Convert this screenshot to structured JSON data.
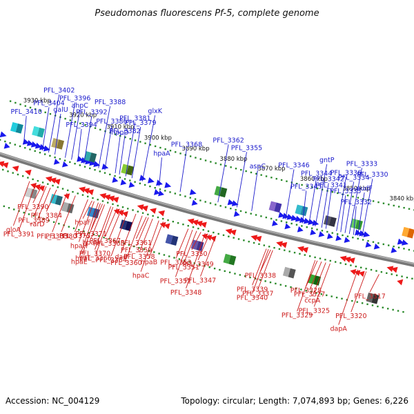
{
  "title": "Pseudomonas fluorescens Pf-5, complete genome",
  "footer": {
    "accession": "Accession: NC_004129",
    "summary": "Topology: circular; Length: 7,074,893 bp; Genes: 6,226"
  },
  "colors": {
    "backbone": "#888888",
    "forward": "#1a1aee",
    "reverse": "#ee1a1a",
    "label_top": "#1a1acc",
    "label_bottom": "#cc1a1a",
    "dots": "#2a8a2a"
  },
  "kbp_ticks": [
    {
      "label": "3930 kbp",
      "u": 0.06
    },
    {
      "label": "3920 kbp",
      "u": 0.17
    },
    {
      "label": "3910 kbp",
      "u": 0.26
    },
    {
      "label": "3900 kbp",
      "u": 0.35
    },
    {
      "label": "3890 kbp",
      "u": 0.44
    },
    {
      "label": "3880 kbp",
      "u": 0.53
    },
    {
      "label": "3870 kbp",
      "u": 0.62
    },
    {
      "label": "3860 kbp",
      "u": 0.72
    },
    {
      "label": "3850 kbp",
      "u": 0.82
    },
    {
      "label": "3840 kbp",
      "u": 0.93
    }
  ],
  "top_genes": [
    {
      "label": "PFL_3410",
      "u": 0.055
    },
    {
      "label": "PFL_3404",
      "u": 0.1
    },
    {
      "label": "PFL_3402",
      "u": 0.115
    },
    {
      "label": "galU",
      "u": 0.13
    },
    {
      "label": "PFL_3396",
      "u": 0.155
    },
    {
      "label": "ahpC",
      "u": 0.17
    },
    {
      "label": "PFL_3394",
      "u": 0.185
    },
    {
      "label": "PFL_3392",
      "u": 0.2
    },
    {
      "label": "PFL_3388",
      "u": 0.235
    },
    {
      "label": "PFL_3386",
      "u": 0.25
    },
    {
      "label": "PFL_3382",
      "u": 0.285
    },
    {
      "label": "PFL_3381",
      "u": 0.3
    },
    {
      "label": "hppD",
      "u": 0.275
    },
    {
      "label": "PFL_3379",
      "u": 0.315
    },
    {
      "label": "glxK",
      "u": 0.34
    },
    {
      "label": "hpaA",
      "u": 0.38
    },
    {
      "label": "PFL_3368",
      "u": 0.43
    },
    {
      "label": "PFL_3362",
      "u": 0.52
    },
    {
      "label": "aspC",
      "u": 0.6
    },
    {
      "label": "PFL_3355",
      "u": 0.565
    },
    {
      "label": "PFL_3346",
      "u": 0.68
    },
    {
      "label": "PFL_3345",
      "u": 0.72
    },
    {
      "label": "PFL_3344",
      "u": 0.735
    },
    {
      "label": "gntP",
      "u": 0.75
    },
    {
      "label": "PFL_3342",
      "u": 0.765
    },
    {
      "label": "PFL_3341",
      "u": 0.775
    },
    {
      "label": "PFL_3336",
      "u": 0.8
    },
    {
      "label": "PFL_3335",
      "u": 0.81
    },
    {
      "label": "PFL_3334",
      "u": 0.82
    },
    {
      "label": "PFL_3333",
      "u": 0.83
    },
    {
      "label": "PFL_3332",
      "u": 0.84
    },
    {
      "label": "nudF",
      "u": 0.85
    },
    {
      "label": "PFL_3330",
      "u": 0.86
    }
  ],
  "bottom_genes": [
    {
      "label": "PFL_3390",
      "u": 0.12
    },
    {
      "label": "rarD",
      "u": 0.14
    },
    {
      "label": "PFL_3391",
      "u": 0.105
    },
    {
      "label": "PFL_3389",
      "u": 0.13
    },
    {
      "label": "gloA",
      "u": 0.09
    },
    {
      "label": "PFL_3383",
      "u": 0.18
    },
    {
      "label": "PFL_3384",
      "u": 0.155
    },
    {
      "label": "PFL_3380",
      "u": 0.2
    },
    {
      "label": "hpaI",
      "u": 0.26
    },
    {
      "label": "hpaD",
      "u": 0.27
    },
    {
      "label": "PFL_3367",
      "u": 0.3
    },
    {
      "label": "PFL_3370",
      "u": 0.285
    },
    {
      "label": "PFL_3371",
      "u": 0.265
    },
    {
      "label": "hpaH",
      "u": 0.245
    },
    {
      "label": "hpaE",
      "u": 0.255
    },
    {
      "label": "hpaF",
      "u": 0.24
    },
    {
      "label": "PFL_3375",
      "u": 0.23
    },
    {
      "label": "PFL_3366",
      "u": 0.29
    },
    {
      "label": "PFL_3365",
      "u": 0.31
    },
    {
      "label": "PFL_3364",
      "u": 0.325
    },
    {
      "label": "dad",
      "u": 0.345
    },
    {
      "label": "PFL_3361",
      "u": 0.37
    },
    {
      "label": "hpaB",
      "u": 0.41
    },
    {
      "label": "hpaC",
      "u": 0.4
    },
    {
      "label": "PFL_3358",
      "u": 0.385
    },
    {
      "label": "PFL_3359",
      "u": 0.375
    },
    {
      "label": "PFL_3360",
      "u": 0.36
    },
    {
      "label": "PFL_3349",
      "u": 0.52
    },
    {
      "label": "PFL_3347",
      "u": 0.535
    },
    {
      "label": "PFL_3348",
      "u": 0.51
    },
    {
      "label": "PFL_3350",
      "u": 0.5
    },
    {
      "label": "PFL_3351",
      "u": 0.49
    },
    {
      "label": "PFL_3352",
      "u": 0.48
    },
    {
      "label": "PFL_3353",
      "u": 0.47
    },
    {
      "label": "PFL_3340",
      "u": 0.66
    },
    {
      "label": "PFL_3337",
      "u": 0.67
    },
    {
      "label": "PFL_3338",
      "u": 0.665
    },
    {
      "label": "PFL_3339",
      "u": 0.655
    },
    {
      "label": "PFL_3329",
      "u": 0.77
    },
    {
      "label": "ccpA",
      "u": 0.795
    },
    {
      "label": "PFL_3327",
      "u": 0.785
    },
    {
      "label": "PFL_3325",
      "u": 0.805
    },
    {
      "label": "PFL_3328",
      "u": 0.775
    },
    {
      "label": "PFL_3320",
      "u": 0.89
    },
    {
      "label": "dapA",
      "u": 0.87
    },
    {
      "label": "PFL_3317",
      "u": 0.92
    }
  ]
}
